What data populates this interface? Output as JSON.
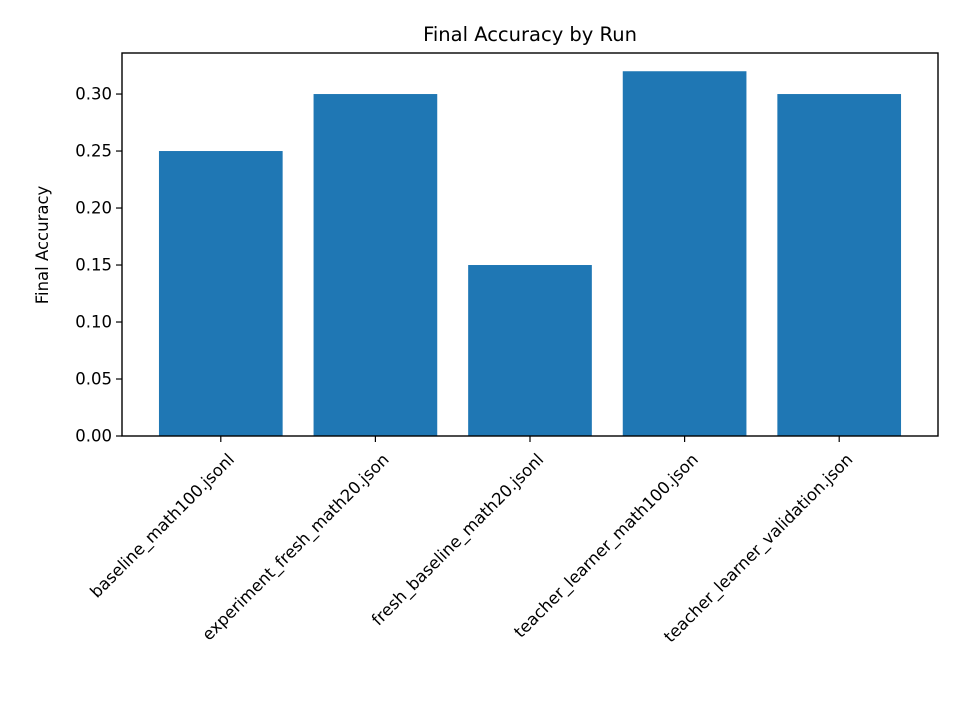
{
  "chart_data": {
    "type": "bar",
    "title": "Final Accuracy by Run",
    "xlabel": "",
    "ylabel": "Final Accuracy",
    "categories": [
      "baseline_math100.jsonl",
      "experiment_fresh_math20.json",
      "fresh_baseline_math20.jsonl",
      "teacher_learner_math100.json",
      "teacher_learner_validation.json"
    ],
    "values": [
      0.25,
      0.3,
      0.15,
      0.32,
      0.3
    ],
    "ylim": [
      0,
      0.336
    ],
    "yticks": [
      0.0,
      0.05,
      0.1,
      0.15,
      0.2,
      0.25,
      0.3
    ],
    "ytick_labels": [
      "0.00",
      "0.05",
      "0.10",
      "0.15",
      "0.20",
      "0.25",
      "0.30"
    ],
    "grid": false,
    "legend": "none",
    "bar_color": "#1f77b4"
  }
}
